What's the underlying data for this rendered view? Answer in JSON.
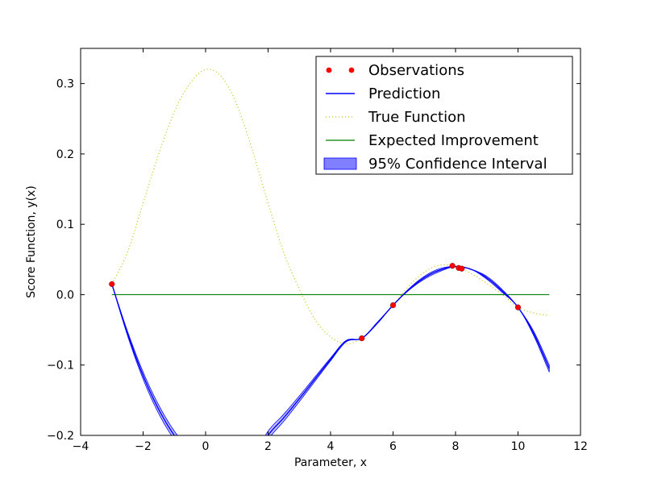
{
  "chart_data": {
    "type": "line",
    "xlabel": "Parameter, x",
    "ylabel": "Score Function, y(x)",
    "xlim": [
      -4,
      12
    ],
    "ylim": [
      -0.2,
      0.35
    ],
    "x_ticks": [
      -4,
      -2,
      0,
      2,
      4,
      6,
      8,
      10,
      12
    ],
    "x_tick_labels": [
      "−4",
      "−2",
      "0",
      "2",
      "4",
      "6",
      "8",
      "10",
      "12"
    ],
    "y_ticks": [
      -0.2,
      -0.1,
      0.0,
      0.1,
      0.2,
      0.3
    ],
    "y_tick_labels": [
      "−0.2",
      "−0.1",
      "0.0",
      "0.1",
      "0.2",
      "0.3"
    ],
    "grid": false,
    "legend_position": "top-right",
    "colors": {
      "observations": "#ff0000",
      "prediction": "#0000ff",
      "true_function": "#bfbf00",
      "expected_improvement": "#008000",
      "confidence_interval": "#8080ff"
    },
    "series": [
      {
        "name": "Observations",
        "kind": "scatter",
        "x": [
          -3.0,
          5.0,
          6.0,
          7.9,
          8.1,
          8.2,
          10.0
        ],
        "y": [
          0.015,
          -0.062,
          -0.015,
          0.041,
          0.038,
          0.037,
          -0.018
        ]
      },
      {
        "name": "Prediction",
        "kind": "line",
        "x": [
          -3.0,
          -2.5,
          -2.0,
          -1.5,
          -1.0,
          -0.5,
          0.0,
          0.5,
          1.0,
          1.5,
          2.0,
          2.5,
          3.0,
          3.5,
          4.0,
          4.5,
          5.0,
          5.5,
          6.0,
          6.5,
          7.0,
          7.5,
          8.0,
          8.5,
          9.0,
          9.5,
          10.0,
          10.5,
          11.0
        ],
        "y": [
          0.015,
          -0.055,
          -0.115,
          -0.163,
          -0.2,
          -0.226,
          -0.242,
          -0.249,
          -0.248,
          -0.238,
          -0.2,
          -0.175,
          -0.148,
          -0.12,
          -0.092,
          -0.066,
          -0.062,
          -0.04,
          -0.015,
          0.007,
          0.024,
          0.035,
          0.04,
          0.036,
          0.024,
          0.005,
          -0.018,
          -0.055,
          -0.105
        ]
      },
      {
        "name": "True Function",
        "kind": "line",
        "x": [
          -3.0,
          -2.5,
          -2.0,
          -1.5,
          -1.0,
          -0.5,
          0.0,
          0.5,
          1.0,
          1.5,
          2.0,
          2.5,
          3.0,
          3.5,
          4.0,
          4.5,
          5.0,
          5.5,
          6.0,
          6.5,
          7.0,
          7.5,
          8.0,
          8.5,
          9.0,
          9.5,
          10.0,
          10.5,
          11.0
        ],
        "y": [
          0.015,
          0.06,
          0.13,
          0.2,
          0.26,
          0.3,
          0.32,
          0.31,
          0.27,
          0.205,
          0.13,
          0.06,
          0.008,
          -0.035,
          -0.06,
          -0.07,
          -0.062,
          -0.04,
          -0.015,
          0.012,
          0.032,
          0.042,
          0.04,
          0.03,
          0.016,
          0.0,
          -0.018,
          -0.026,
          -0.03
        ]
      },
      {
        "name": "Expected Improvement",
        "kind": "line",
        "x": [
          -3.0,
          11.0
        ],
        "y": [
          0.0,
          0.0
        ]
      },
      {
        "name": "95% Confidence Interval",
        "kind": "band",
        "x": [
          -3.0,
          -2.5,
          -2.0,
          -1.5,
          -1.0,
          -0.5,
          0.0,
          0.5,
          1.0,
          1.5,
          2.0,
          2.5,
          3.0,
          3.5,
          4.0,
          4.5,
          5.0,
          5.5,
          6.0,
          6.5,
          7.0,
          7.5,
          8.0,
          8.5,
          9.0,
          9.5,
          10.0,
          10.5,
          11.0
        ],
        "half_width": [
          0.0,
          0.003,
          0.005,
          0.006,
          0.006,
          0.006,
          0.006,
          0.006,
          0.006,
          0.006,
          0.006,
          0.005,
          0.004,
          0.003,
          0.002,
          0.001,
          0.0,
          0.001,
          0.0,
          0.001,
          0.002,
          0.002,
          0.0,
          0.0,
          0.002,
          0.002,
          0.0,
          0.003,
          0.005
        ]
      }
    ]
  }
}
